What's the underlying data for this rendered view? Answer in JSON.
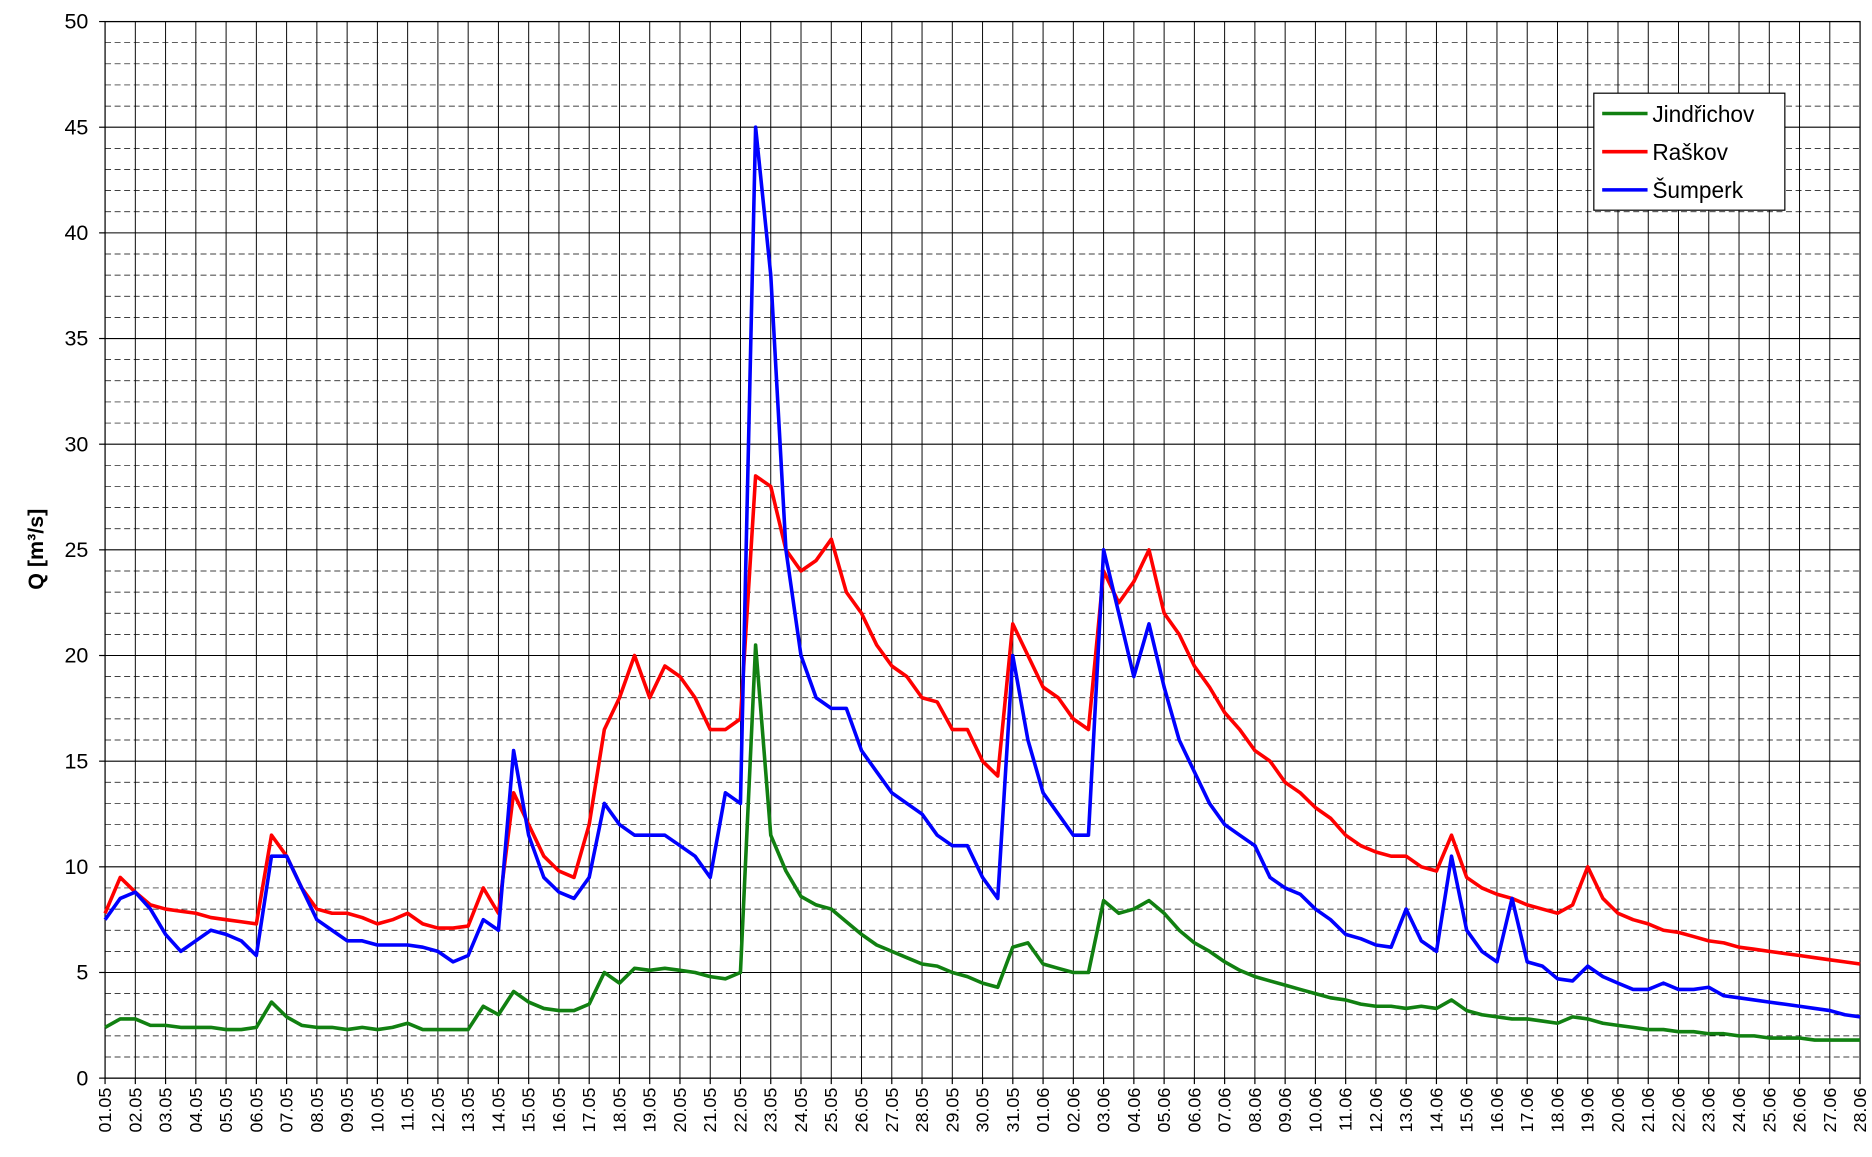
{
  "chart_data": {
    "type": "line",
    "ylabel": "Q [m³/s]",
    "ylim": [
      0,
      50
    ],
    "yticks": [
      0,
      5,
      10,
      15,
      20,
      25,
      30,
      35,
      40,
      45,
      50
    ],
    "grid": true,
    "minor_grid_divisions": 5,
    "legend": "top right",
    "categories": [
      "01.05",
      null,
      "02.05",
      null,
      "03.05",
      null,
      "04.05",
      null,
      "05.05",
      null,
      "06.05",
      null,
      "07.05",
      null,
      "08.05",
      null,
      "09.05",
      null,
      "10.05",
      null,
      "11.05",
      null,
      "12.05",
      null,
      "13.05",
      null,
      "14.05",
      null,
      "15.05",
      null,
      "16.05",
      null,
      "17.05",
      null,
      "18.05",
      null,
      "19.05",
      null,
      "20.05",
      null,
      "21.05",
      null,
      "22.05",
      null,
      "23.05",
      null,
      "24.05",
      null,
      "25.05",
      null,
      "26.05",
      null,
      "27.05",
      null,
      "28.05",
      null,
      "29.05",
      null,
      "30.05",
      null,
      "31.05",
      null,
      "01.06",
      null,
      "02.06",
      null,
      "03.06",
      null,
      "04.06",
      null,
      "05.06",
      null,
      "06.06",
      null,
      "07.06",
      null,
      "08.06",
      null,
      "09.06",
      null,
      "10.06",
      null,
      "11.06",
      null,
      "12.06",
      null,
      "13.06",
      null,
      "14.06",
      null,
      "15.06",
      null,
      "16.06",
      null,
      "17.06",
      null,
      "18.06",
      null,
      "19.06",
      null,
      "20.06",
      null,
      "21.06",
      null,
      "22.06",
      null,
      "23.06",
      null,
      "24.06",
      null,
      "25.06",
      null,
      "26.06",
      null,
      "27.06",
      null,
      "28.06"
    ],
    "series": [
      {
        "name": "Jindřichov",
        "color": "#118011",
        "values": [
          2.4,
          2.8,
          2.8,
          2.5,
          2.5,
          2.4,
          2.4,
          2.4,
          2.3,
          2.3,
          2.4,
          3.6,
          2.9,
          2.5,
          2.4,
          2.4,
          2.3,
          2.4,
          2.3,
          2.4,
          2.6,
          2.3,
          2.3,
          2.3,
          2.3,
          3.4,
          3.0,
          4.1,
          3.6,
          3.3,
          3.2,
          3.2,
          3.5,
          5.0,
          4.5,
          5.2,
          5.1,
          5.2,
          5.1,
          5.0,
          4.8,
          4.7,
          5.0,
          20.5,
          11.5,
          9.8,
          8.6,
          8.2,
          8.0,
          7.4,
          6.8,
          6.3,
          6.0,
          5.7,
          5.4,
          5.3,
          5.0,
          4.8,
          4.5,
          4.3,
          6.2,
          6.4,
          5.4,
          5.2,
          5.0,
          5.0,
          8.4,
          7.8,
          8.0,
          8.4,
          7.8,
          7.0,
          6.4,
          6.0,
          5.5,
          5.1,
          4.8,
          4.6,
          4.4,
          4.2,
          4.0,
          3.8,
          3.7,
          3.5,
          3.4,
          3.4,
          3.3,
          3.4,
          3.3,
          3.7,
          3.2,
          3.0,
          2.9,
          2.8,
          2.8,
          2.7,
          2.6,
          2.9,
          2.8,
          2.6,
          2.5,
          2.4,
          2.3,
          2.3,
          2.2,
          2.2,
          2.1,
          2.1,
          2.0,
          2.0,
          1.9,
          1.9,
          1.9,
          1.8,
          1.8,
          1.8,
          1.8
        ]
      },
      {
        "name": "Raškov",
        "color": "#ff0000",
        "values": [
          7.8,
          9.5,
          8.8,
          8.2,
          8.0,
          7.9,
          7.8,
          7.6,
          7.5,
          7.4,
          7.3,
          11.5,
          10.5,
          9.0,
          8.0,
          7.8,
          7.8,
          7.6,
          7.3,
          7.5,
          7.8,
          7.3,
          7.1,
          7.1,
          7.2,
          9.0,
          7.8,
          13.5,
          12.0,
          10.5,
          9.8,
          9.5,
          12.0,
          16.5,
          18.0,
          20.0,
          18.0,
          19.5,
          19.0,
          18.0,
          16.5,
          16.5,
          17.0,
          28.5,
          28.0,
          25.0,
          24.0,
          24.5,
          25.5,
          23.0,
          22.0,
          20.5,
          19.5,
          19.0,
          18.0,
          17.8,
          16.5,
          16.5,
          15.0,
          14.3,
          21.5,
          20.0,
          18.5,
          18.0,
          17.0,
          16.5,
          24.0,
          22.5,
          23.5,
          25.0,
          22.0,
          21.0,
          19.5,
          18.5,
          17.3,
          16.5,
          15.5,
          15.0,
          14.0,
          13.5,
          12.8,
          12.3,
          11.5,
          11.0,
          10.7,
          10.5,
          10.5,
          10.0,
          9.8,
          11.5,
          9.5,
          9.0,
          8.7,
          8.5,
          8.2,
          8.0,
          7.8,
          8.2,
          10.0,
          8.5,
          7.8,
          7.5,
          7.3,
          7.0,
          6.9,
          6.7,
          6.5,
          6.4,
          6.2,
          6.1,
          6.0,
          5.9,
          5.8,
          5.7,
          5.6,
          5.5,
          5.4
        ]
      },
      {
        "name": "Šumperk",
        "color": "#0000ff",
        "values": [
          7.5,
          8.5,
          8.8,
          8.0,
          6.8,
          6.0,
          6.5,
          7.0,
          6.8,
          6.5,
          5.8,
          10.5,
          10.5,
          9.0,
          7.5,
          7.0,
          6.5,
          6.5,
          6.3,
          6.3,
          6.3,
          6.2,
          6.0,
          5.5,
          5.8,
          7.5,
          7.0,
          15.5,
          11.5,
          9.5,
          8.8,
          8.5,
          9.5,
          13.0,
          12.0,
          11.5,
          11.5,
          11.5,
          11.0,
          10.5,
          9.5,
          13.5,
          13.0,
          45.0,
          38.0,
          25.0,
          20.0,
          18.0,
          17.5,
          17.5,
          15.5,
          14.5,
          13.5,
          13.0,
          12.5,
          11.5,
          11.0,
          11.0,
          9.5,
          8.5,
          20.0,
          16.0,
          13.5,
          12.5,
          11.5,
          11.5,
          25.0,
          22.0,
          19.0,
          21.5,
          18.5,
          16.0,
          14.5,
          13.0,
          12.0,
          11.5,
          11.0,
          9.5,
          9.0,
          8.7,
          8.0,
          7.5,
          6.8,
          6.6,
          6.3,
          6.2,
          8.0,
          6.5,
          6.0,
          10.5,
          7.0,
          6.0,
          5.5,
          8.5,
          5.5,
          5.3,
          4.7,
          4.6,
          5.3,
          4.8,
          4.5,
          4.2,
          4.2,
          4.5,
          4.2,
          4.2,
          4.3,
          3.9,
          3.8,
          3.7,
          3.6,
          3.5,
          3.4,
          3.3,
          3.2,
          3.0,
          2.9
        ]
      }
    ]
  }
}
